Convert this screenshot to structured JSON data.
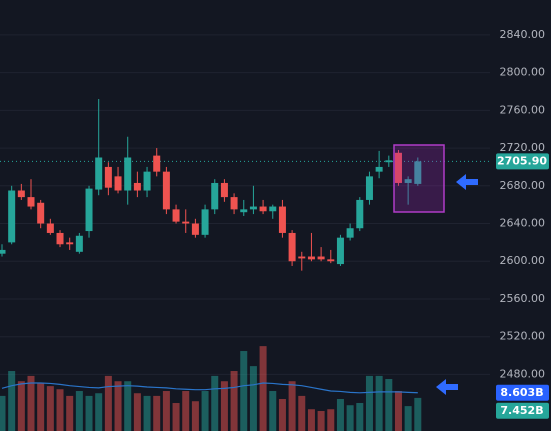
{
  "chart_data": {
    "type": "candlestick",
    "open": [
      2608,
      2620,
      2675,
      2668,
      2662,
      2640,
      2630,
      2620,
      2610,
      2632,
      2676,
      2700,
      2690,
      2675,
      2683,
      2675,
      2712,
      2695,
      2655,
      2642,
      2640,
      2628,
      2655,
      2683,
      2668,
      2652,
      2655,
      2658,
      2653,
      2658,
      2630,
      2605,
      2605,
      2605,
      2602,
      2597,
      2625,
      2635,
      2665,
      2695,
      2705,
      2715,
      2683,
      2682
    ],
    "high": [
      2618,
      2680,
      2682,
      2687,
      2665,
      2645,
      2633,
      2625,
      2630,
      2680,
      2772,
      2705,
      2700,
      2732,
      2695,
      2700,
      2720,
      2700,
      2660,
      2655,
      2645,
      2660,
      2687,
      2687,
      2672,
      2665,
      2680,
      2665,
      2660,
      2665,
      2633,
      2610,
      2630,
      2615,
      2612,
      2628,
      2640,
      2668,
      2695,
      2717,
      2712,
      2718,
      2690,
      2710
    ],
    "low": [
      2605,
      2618,
      2665,
      2655,
      2635,
      2628,
      2615,
      2612,
      2608,
      2625,
      2670,
      2670,
      2672,
      2660,
      2668,
      2668,
      2690,
      2650,
      2640,
      2630,
      2625,
      2625,
      2650,
      2663,
      2650,
      2648,
      2650,
      2650,
      2645,
      2625,
      2595,
      2590,
      2600,
      2600,
      2598,
      2595,
      2622,
      2632,
      2660,
      2688,
      2700,
      2680,
      2660,
      2680
    ],
    "close": [
      2612,
      2675,
      2668,
      2658,
      2640,
      2630,
      2618,
      2618,
      2627,
      2677,
      2710,
      2678,
      2675,
      2710,
      2675,
      2695,
      2695,
      2655,
      2642,
      2640,
      2628,
      2655,
      2683,
      2668,
      2655,
      2655,
      2658,
      2653,
      2658,
      2630,
      2600,
      2603,
      2602,
      2602,
      2600,
      2625,
      2635,
      2665,
      2690,
      2700,
      2707,
      2683,
      2687,
      2705.9
    ],
    "up_color": "#26a69a",
    "down_color": "#ef5350",
    "ylim": [
      2420,
      2877
    ],
    "yticks": [
      {
        "value": 2480,
        "label": "2480.00"
      },
      {
        "value": 2520,
        "label": "2520.00"
      },
      {
        "value": 2560,
        "label": "2560.00"
      },
      {
        "value": 2600,
        "label": "2600.00"
      },
      {
        "value": 2640,
        "label": "2640.00"
      },
      {
        "value": 2680,
        "label": "2680.00"
      },
      {
        "value": 2720,
        "label": "2720.00"
      },
      {
        "value": 2760,
        "label": "2760.00"
      },
      {
        "value": 2800,
        "label": "2800.00"
      },
      {
        "value": 2840,
        "label": "2840.00"
      }
    ],
    "grid": true,
    "last_price_label": "2705.90",
    "volume": {
      "values": [
        7.9,
        13.5,
        11.2,
        12.4,
        10.8,
        10.1,
        9.4,
        7.9,
        9.0,
        7.9,
        8.5,
        12.4,
        11.2,
        11.2,
        8.5,
        7.9,
        7.9,
        9.0,
        6.3,
        9.0,
        6.7,
        9.0,
        12.4,
        11.2,
        13.5,
        18.0,
        14.6,
        19.1,
        9.0,
        7.2,
        11.2,
        7.9,
        4.9,
        4.5,
        4.9,
        7.2,
        5.8,
        6.3,
        12.4,
        12.4,
        11.7,
        9.0,
        5.6,
        7.452
      ],
      "last_label": "7.452B",
      "ma": [
        9.6,
        10.2,
        10.6,
        10.8,
        10.8,
        10.7,
        10.5,
        10.2,
        10.0,
        9.8,
        9.7,
        10.0,
        10.1,
        10.2,
        10.1,
        9.9,
        9.8,
        9.7,
        9.5,
        9.4,
        9.3,
        9.3,
        9.5,
        9.6,
        9.8,
        10.2,
        10.4,
        10.8,
        10.7,
        10.5,
        10.4,
        10.2,
        9.8,
        9.4,
        9.0,
        8.9,
        8.7,
        8.6,
        8.7,
        8.8,
        8.8,
        8.8,
        8.7,
        8.603
      ],
      "ma_label": "8.603B",
      "ma_color": "#2a74c9",
      "ylim": [
        0,
        97
      ]
    }
  }
}
